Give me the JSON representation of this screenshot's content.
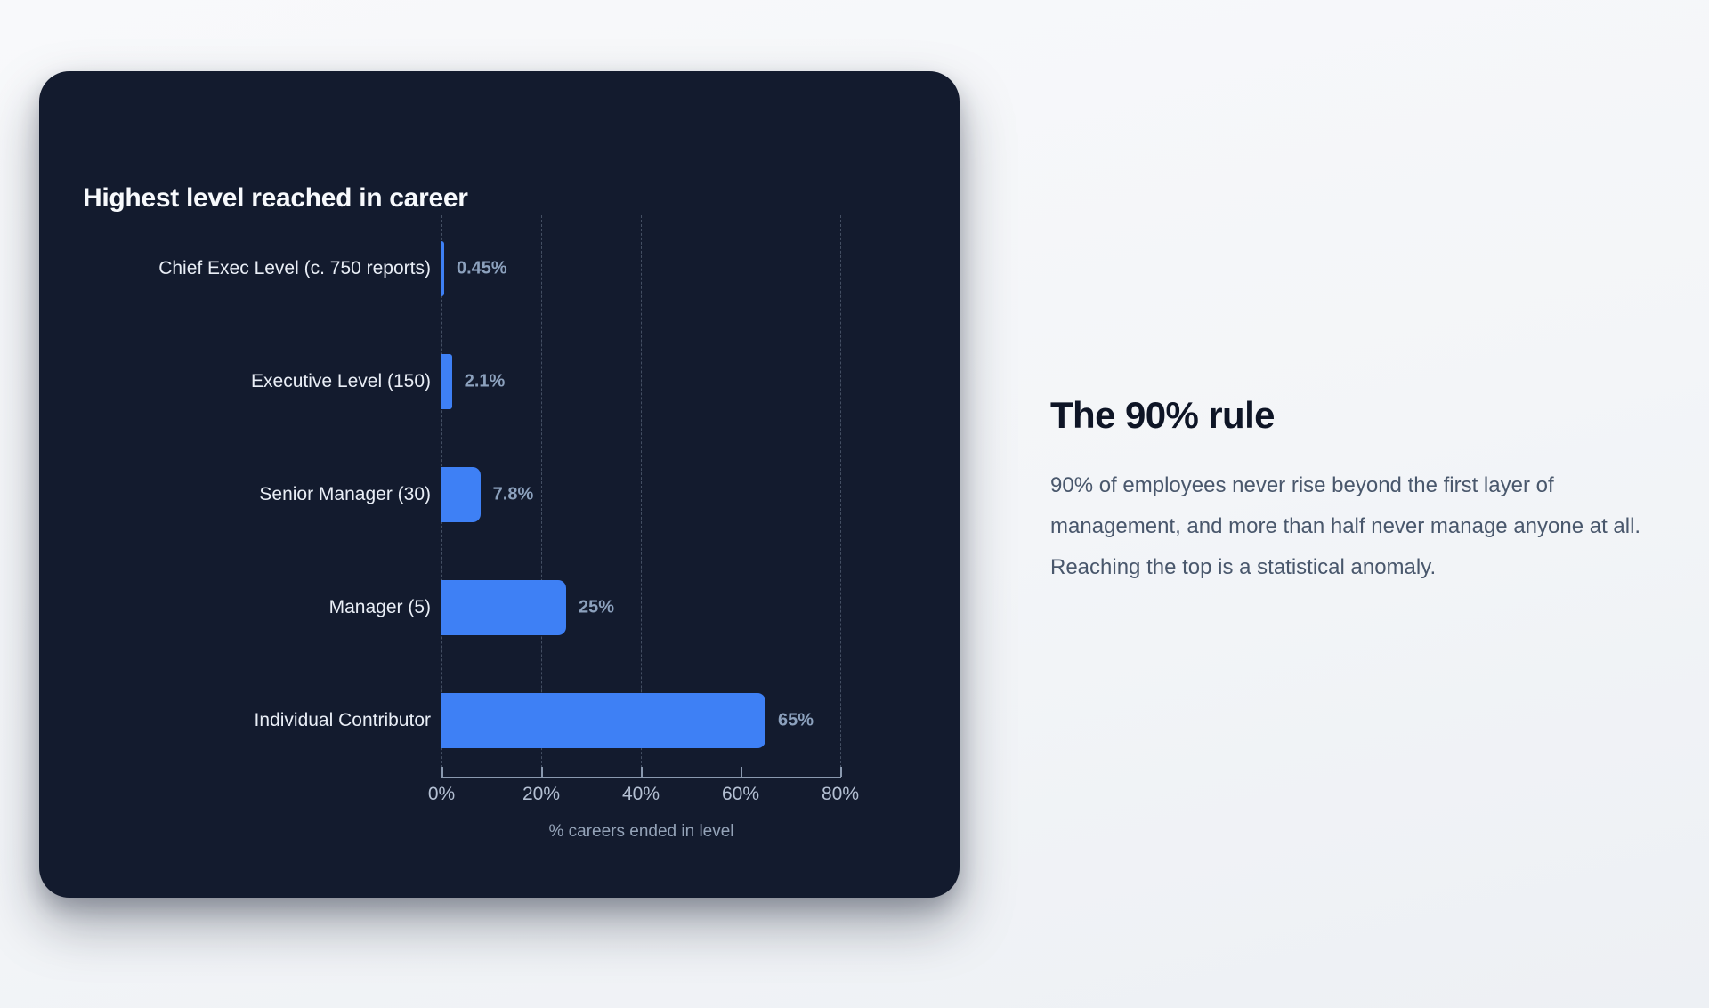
{
  "card": {
    "title": "Highest level reached in career"
  },
  "chart_data": {
    "type": "bar",
    "orientation": "horizontal",
    "title": "Highest level reached in career",
    "categories": [
      "Chief Exec Level (c. 750 reports)",
      "Executive Level (150)",
      "Senior Manager (30)",
      "Manager (5)",
      "Individual Contributor"
    ],
    "values": [
      0.45,
      2.1,
      7.8,
      25,
      65
    ],
    "value_labels": [
      "0.45%",
      "2.1%",
      "7.8%",
      "25%",
      "65%"
    ],
    "xlabel": "% careers ended in level",
    "ylabel": "",
    "x_ticks": [
      "0%",
      "20%",
      "40%",
      "60%",
      "80%"
    ],
    "x_tick_values": [
      0,
      20,
      40,
      60,
      80
    ],
    "xlim": [
      0,
      80
    ],
    "grid": "vertical-dashed",
    "legend": "none",
    "bar_color": "#3e80f5",
    "card_background": "#131b2e"
  },
  "aside": {
    "heading": "The 90% rule",
    "body": "90% of employees never rise beyond the first layer of management, and more than half never manage anyone at all. Reaching the top is a statistical anomaly."
  }
}
